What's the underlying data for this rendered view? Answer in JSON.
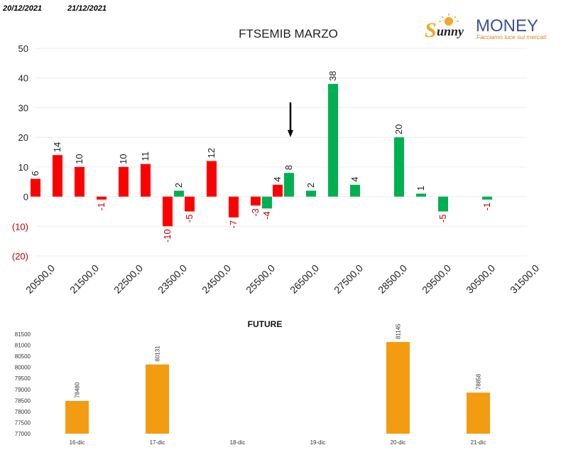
{
  "header": {
    "date_left": "20/12/2021",
    "date_right": "21/12/2021"
  },
  "logo": {
    "word1": "unny",
    "word1_initial": "S",
    "word2": "MONEY",
    "tagline": "Facciamo luce sui mercati",
    "colors": {
      "sun": "#f5a623",
      "word2": "#3f4f96",
      "word1": "#222222"
    }
  },
  "chart_data": [
    {
      "type": "bar",
      "title": "FTSEMIB MARZO",
      "ylim": [
        -20,
        50
      ],
      "y_ticks": [
        50,
        40,
        30,
        20,
        10,
        0,
        -10,
        -20
      ],
      "y_tick_labels": [
        "50",
        "40",
        "30",
        "20",
        "10",
        "0",
        "(10)",
        "(20)"
      ],
      "x_tick_labels": [
        "20500,0",
        "21500,0",
        "22500,0",
        "23500,0",
        "24500,0",
        "25500,0",
        "26500,0",
        "27500,0",
        "28500,0",
        "29500,0",
        "30500,0",
        "31500,0"
      ],
      "strikes": [
        20500,
        21000,
        21500,
        22000,
        22500,
        23000,
        23500,
        24000,
        24500,
        25000,
        25500,
        26000,
        26500,
        27000,
        27500,
        28000,
        28500,
        29000,
        29500,
        30000,
        30500,
        31000,
        31500
      ],
      "series": [
        {
          "color": "#ff0000",
          "values": [
            6,
            14,
            10,
            -1,
            10,
            11,
            -10,
            -5,
            12,
            -7,
            -3,
            4,
            null,
            null,
            null,
            null,
            null,
            null,
            null,
            null,
            null,
            null,
            null
          ]
        },
        {
          "color": "#00b050",
          "values": [
            null,
            null,
            null,
            null,
            null,
            null,
            2,
            null,
            null,
            null,
            -4,
            8,
            2,
            38,
            4,
            null,
            20,
            1,
            -5,
            null,
            -1,
            null,
            null
          ]
        }
      ],
      "marker_arrow_at_strike": 26000,
      "grid": true
    },
    {
      "type": "bar",
      "title": "FUTURE",
      "categories": [
        "16-dic",
        "17-dic",
        "18-dic",
        "19-dic",
        "20-dic",
        "21-dic"
      ],
      "values": [
        78480,
        80131,
        null,
        null,
        81145,
        78858
      ],
      "ylim": [
        77000,
        81500
      ],
      "y_ticks": [
        77000,
        77500,
        78000,
        78500,
        79000,
        79500,
        80000,
        80500,
        81000,
        81500
      ],
      "color": "#f39c12",
      "grid": false
    }
  ]
}
